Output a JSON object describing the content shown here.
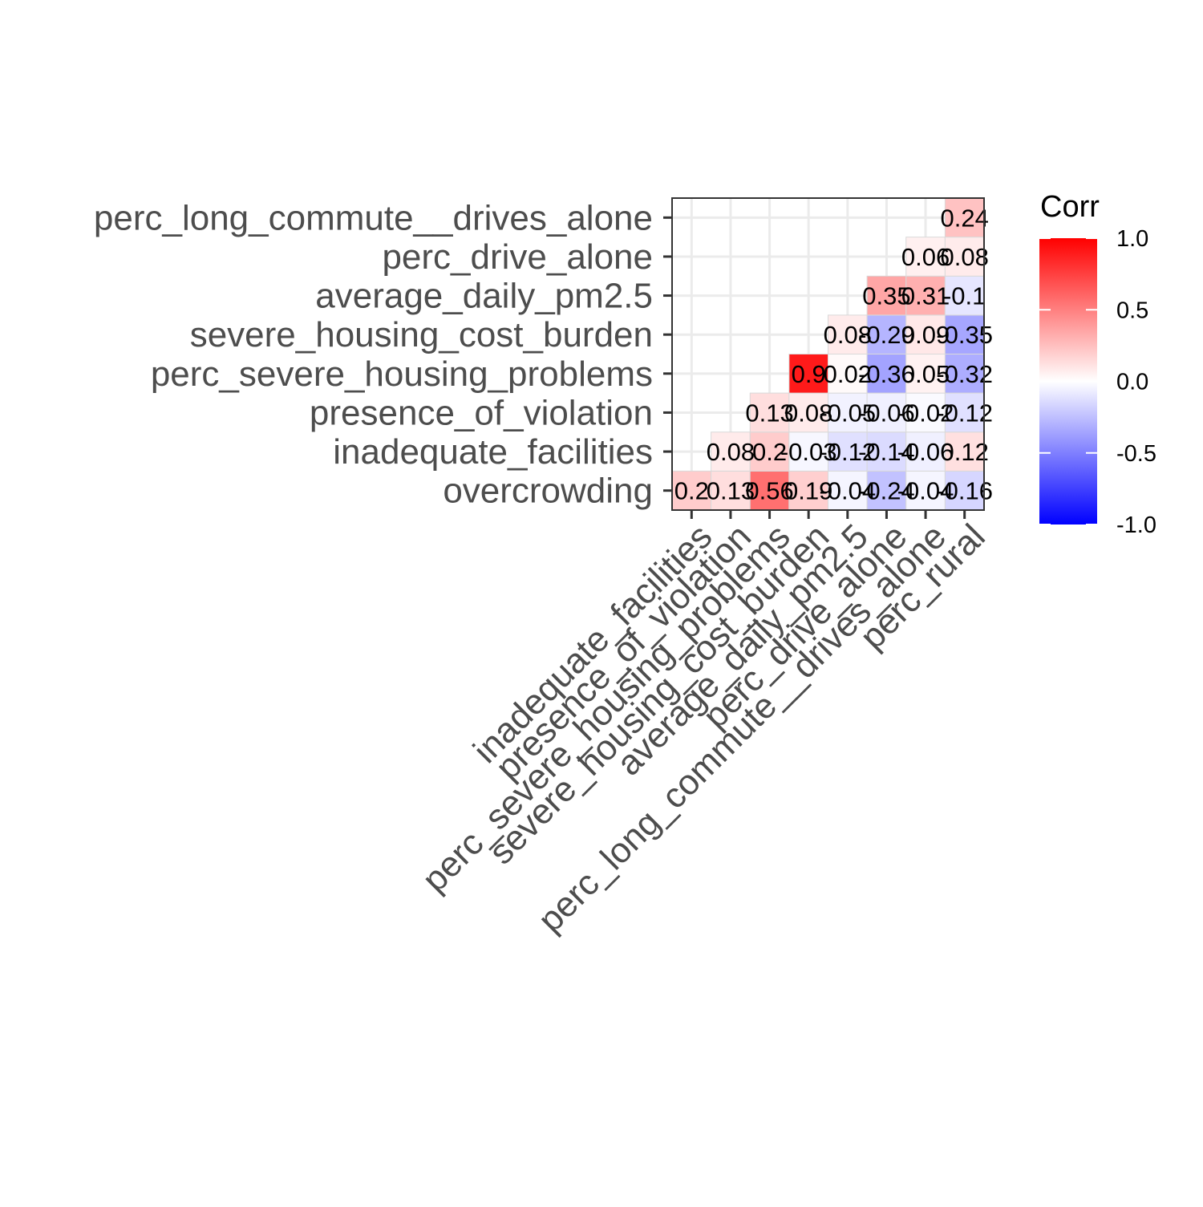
{
  "chart_data": {
    "type": "heatmap",
    "x_categories": [
      "inadequate_facilities",
      "presence_of_violation",
      "perc_severe_housing_problems",
      "severe_housing_cost_burden",
      "average_daily_pm2.5",
      "perc_drive_alone",
      "perc_long_commute__drives_alone",
      "perc_rural"
    ],
    "y_categories": [
      "overcrowding",
      "inadequate_facilities",
      "presence_of_violation",
      "perc_severe_housing_problems",
      "severe_housing_cost_burden",
      "average_daily_pm2.5",
      "perc_drive_alone",
      "perc_long_commute__drives_alone"
    ],
    "cells": [
      {
        "x": "inadequate_facilities",
        "y": "overcrowding",
        "value": 0.2,
        "label": "0.2"
      },
      {
        "x": "presence_of_violation",
        "y": "overcrowding",
        "value": 0.13,
        "label": "0.13"
      },
      {
        "x": "perc_severe_housing_problems",
        "y": "overcrowding",
        "value": 0.56,
        "label": "0.56"
      },
      {
        "x": "severe_housing_cost_burden",
        "y": "overcrowding",
        "value": 0.19,
        "label": "0.19"
      },
      {
        "x": "average_daily_pm2.5",
        "y": "overcrowding",
        "value": -0.04,
        "label": "-0.04"
      },
      {
        "x": "perc_drive_alone",
        "y": "overcrowding",
        "value": -0.24,
        "label": "-0.24"
      },
      {
        "x": "perc_long_commute__drives_alone",
        "y": "overcrowding",
        "value": -0.04,
        "label": "-0.04"
      },
      {
        "x": "perc_rural",
        "y": "overcrowding",
        "value": -0.16,
        "label": "-0.16"
      },
      {
        "x": "presence_of_violation",
        "y": "inadequate_facilities",
        "value": 0.08,
        "label": "0.08"
      },
      {
        "x": "perc_severe_housing_problems",
        "y": "inadequate_facilities",
        "value": 0.2,
        "label": "0.2"
      },
      {
        "x": "severe_housing_cost_burden",
        "y": "inadequate_facilities",
        "value": -0.03,
        "label": "-0.03"
      },
      {
        "x": "average_daily_pm2.5",
        "y": "inadequate_facilities",
        "value": -0.12,
        "label": "-0.12"
      },
      {
        "x": "perc_drive_alone",
        "y": "inadequate_facilities",
        "value": -0.14,
        "label": "-0.14"
      },
      {
        "x": "perc_long_commute__drives_alone",
        "y": "inadequate_facilities",
        "value": -0.06,
        "label": "-0.06"
      },
      {
        "x": "perc_rural",
        "y": "inadequate_facilities",
        "value": 0.12,
        "label": "0.12"
      },
      {
        "x": "perc_severe_housing_problems",
        "y": "presence_of_violation",
        "value": 0.13,
        "label": "0.13"
      },
      {
        "x": "severe_housing_cost_burden",
        "y": "presence_of_violation",
        "value": 0.08,
        "label": "0.08"
      },
      {
        "x": "average_daily_pm2.5",
        "y": "presence_of_violation",
        "value": -0.05,
        "label": "-0.05"
      },
      {
        "x": "perc_drive_alone",
        "y": "presence_of_violation",
        "value": -0.06,
        "label": "-0.06"
      },
      {
        "x": "perc_long_commute__drives_alone",
        "y": "presence_of_violation",
        "value": -0.02,
        "label": "-0.02"
      },
      {
        "x": "perc_rural",
        "y": "presence_of_violation",
        "value": -0.12,
        "label": "-0.12"
      },
      {
        "x": "severe_housing_cost_burden",
        "y": "perc_severe_housing_problems",
        "value": 0.9,
        "label": "0.9"
      },
      {
        "x": "average_daily_pm2.5",
        "y": "perc_severe_housing_problems",
        "value": 0.02,
        "label": "0.02"
      },
      {
        "x": "perc_drive_alone",
        "y": "perc_severe_housing_problems",
        "value": -0.36,
        "label": "-0.36"
      },
      {
        "x": "perc_long_commute__drives_alone",
        "y": "perc_severe_housing_problems",
        "value": 0.05,
        "label": "0.05"
      },
      {
        "x": "perc_rural",
        "y": "perc_severe_housing_problems",
        "value": -0.32,
        "label": "-0.32"
      },
      {
        "x": "average_daily_pm2.5",
        "y": "severe_housing_cost_burden",
        "value": 0.08,
        "label": "0.08"
      },
      {
        "x": "perc_drive_alone",
        "y": "severe_housing_cost_burden",
        "value": -0.29,
        "label": "-0.29"
      },
      {
        "x": "perc_long_commute__drives_alone",
        "y": "severe_housing_cost_burden",
        "value": 0.09,
        "label": "0.09"
      },
      {
        "x": "perc_rural",
        "y": "severe_housing_cost_burden",
        "value": -0.35,
        "label": "-0.35"
      },
      {
        "x": "perc_drive_alone",
        "y": "average_daily_pm2.5",
        "value": 0.35,
        "label": "0.35"
      },
      {
        "x": "perc_long_commute__drives_alone",
        "y": "average_daily_pm2.5",
        "value": 0.31,
        "label": "0.31"
      },
      {
        "x": "perc_rural",
        "y": "average_daily_pm2.5",
        "value": -0.1,
        "label": "-0.1"
      },
      {
        "x": "perc_long_commute__drives_alone",
        "y": "perc_drive_alone",
        "value": 0.06,
        "label": "0.06"
      },
      {
        "x": "perc_rural",
        "y": "perc_drive_alone",
        "value": 0.08,
        "label": "0.08"
      },
      {
        "x": "perc_rural",
        "y": "perc_long_commute__drives_alone",
        "value": 0.24,
        "label": "0.24"
      }
    ],
    "legend": {
      "title": "Corr",
      "ticks": [
        "1.0",
        "0.5",
        "0.0",
        "-0.5",
        "-1.0"
      ],
      "tick_values": [
        1.0,
        0.5,
        0.0,
        -0.5,
        -1.0
      ],
      "range": [
        -1,
        1
      ],
      "placement": "right"
    },
    "colors": {
      "low": "#0000FF",
      "mid": "#FFFFFF",
      "high": "#FF0000"
    },
    "grid": true
  }
}
